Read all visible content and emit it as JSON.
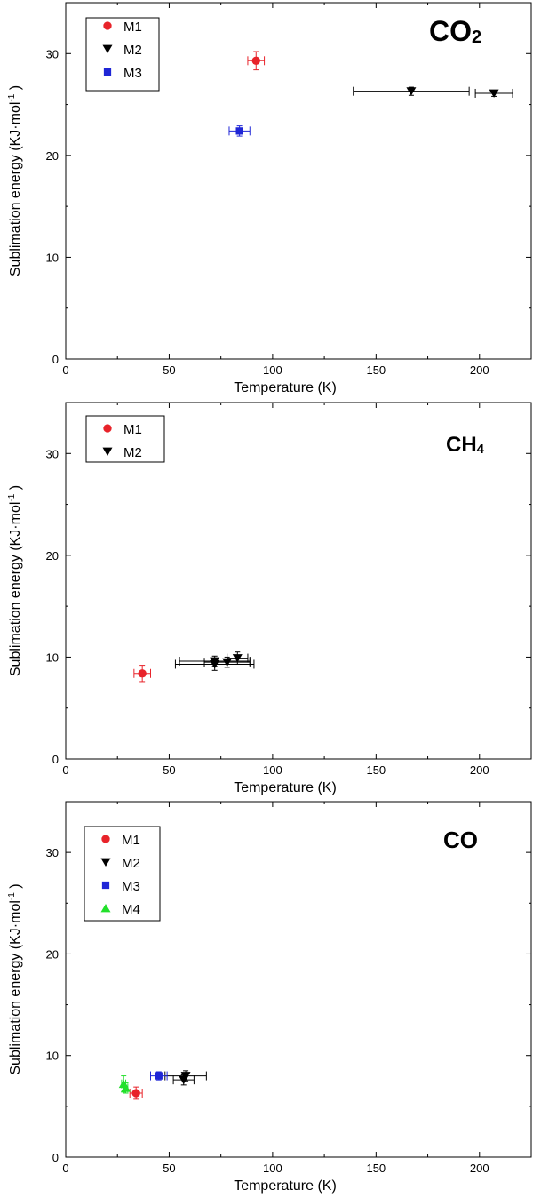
{
  "marker_colors": {
    "M1": "#e8232a",
    "M2": "#000000",
    "M3": "#1f26d6",
    "M4": "#22e02b"
  },
  "chart_data": [
    {
      "type": "scatter",
      "title": "CO",
      "title_subscript": "2",
      "xlabel": "Temperature (K)",
      "ylabel_main": "Sublimation energy (KJ·mol",
      "ylabel_sup": "-1",
      "ylabel_end": ")",
      "xlim": [
        0,
        225
      ],
      "ylim": [
        0,
        35
      ],
      "xticks": [
        0,
        50,
        100,
        150,
        200
      ],
      "yticks": [
        0,
        10,
        20,
        30
      ],
      "legend_position": "top-left",
      "legend": [
        "M1",
        "M2",
        "M3"
      ],
      "series": [
        {
          "name": "M1",
          "marker": "circle",
          "points": [
            {
              "x": 92,
              "y": 29.3,
              "xerr": 4,
              "yerr": 0.9
            }
          ]
        },
        {
          "name": "M2",
          "marker": "triangle-down",
          "points": [
            {
              "x": 167,
              "y": 26.3,
              "xerr": 28,
              "yerr": 0.4
            },
            {
              "x": 207,
              "y": 26.1,
              "xerr": 9,
              "yerr": 0.3
            }
          ]
        },
        {
          "name": "M3",
          "marker": "square",
          "points": [
            {
              "x": 84,
              "y": 22.4,
              "xerr": 5,
              "yerr": 0.5
            }
          ]
        }
      ]
    },
    {
      "type": "scatter",
      "title": "CH",
      "title_subscript": "4",
      "xlabel": "Temperature (K)",
      "ylabel_main": "Sublimation energy (KJ·mol",
      "ylabel_sup": "-1",
      "ylabel_end": ")",
      "xlim": [
        0,
        225
      ],
      "ylim": [
        0,
        35
      ],
      "xticks": [
        0,
        50,
        100,
        150,
        200
      ],
      "yticks": [
        0,
        10,
        20,
        30
      ],
      "legend_position": "top-left",
      "legend": [
        "M1",
        "M2"
      ],
      "series": [
        {
          "name": "M1",
          "marker": "circle",
          "points": [
            {
              "x": 37,
              "y": 8.4,
              "xerr": 4,
              "yerr": 0.8
            }
          ]
        },
        {
          "name": "M2",
          "marker": "triangle-down",
          "points": [
            {
              "x": 72,
              "y": 9.3,
              "xerr": 19,
              "yerr": 0.6
            },
            {
              "x": 72,
              "y": 9.6,
              "xerr": 17,
              "yerr": 0.5
            },
            {
              "x": 78,
              "y": 9.5,
              "xerr": 11,
              "yerr": 0.5
            },
            {
              "x": 83,
              "y": 9.9,
              "xerr": 5,
              "yerr": 0.6
            }
          ]
        }
      ]
    },
    {
      "type": "scatter",
      "title": "CO",
      "title_subscript": "",
      "xlabel": "Temperature (K)",
      "ylabel_main": "Sublimation energy (KJ·mol",
      "ylabel_sup": "-1",
      "ylabel_end": ")",
      "xlim": [
        0,
        225
      ],
      "ylim": [
        0,
        35
      ],
      "xticks": [
        0,
        50,
        100,
        150,
        200
      ],
      "yticks": [
        0,
        10,
        20,
        30
      ],
      "legend_position": "top-left",
      "legend": [
        "M1",
        "M2",
        "M3",
        "M4"
      ],
      "series": [
        {
          "name": "M1",
          "marker": "circle",
          "points": [
            {
              "x": 34,
              "y": 6.3,
              "xerr": 3,
              "yerr": 0.6
            }
          ]
        },
        {
          "name": "M2",
          "marker": "triangle-down",
          "points": [
            {
              "x": 57,
              "y": 7.6,
              "xerr": 5,
              "yerr": 0.5
            },
            {
              "x": 58,
              "y": 8.0,
              "xerr": 10,
              "yerr": 0.5
            }
          ]
        },
        {
          "name": "M3",
          "marker": "square",
          "points": [
            {
              "x": 45,
              "y": 8.0,
              "xerr": 4,
              "yerr": 0.4
            }
          ]
        },
        {
          "name": "M4",
          "marker": "triangle-up",
          "points": [
            {
              "x": 28,
              "y": 7.2,
              "xerr": 1,
              "yerr": 0.8
            },
            {
              "x": 29,
              "y": 6.8,
              "xerr": 1,
              "yerr": 0.5
            }
          ]
        }
      ]
    }
  ]
}
